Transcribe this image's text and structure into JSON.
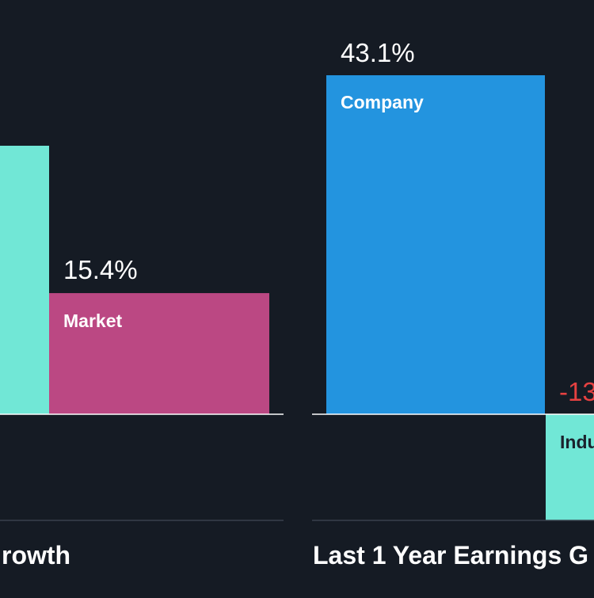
{
  "colors": {
    "background": "#151b24",
    "company": "#2394df",
    "industry": "#71e7d6",
    "market": "#bb4883",
    "positive_text": "#ffffff",
    "negative_text": "#e64141",
    "axis": "#ffffff",
    "bar_label_light": "#ffffff",
    "bar_label_dark": "#1b222d"
  },
  "chart_data": [
    {
      "type": "bar",
      "title": "rowth",
      "categories": [
        "",
        "Market"
      ],
      "bar_colors": [
        "industry",
        "market"
      ],
      "values": [
        null,
        15.4
      ],
      "value_labels": [
        "",
        "15.4%"
      ]
    },
    {
      "type": "bar",
      "title": "Last 1 Year Earnings G",
      "categories": [
        "Company",
        "Indu"
      ],
      "bar_colors": [
        "company",
        "industry"
      ],
      "values": [
        43.1,
        -13
      ],
      "value_labels": [
        "43.1%",
        "-13"
      ]
    }
  ]
}
